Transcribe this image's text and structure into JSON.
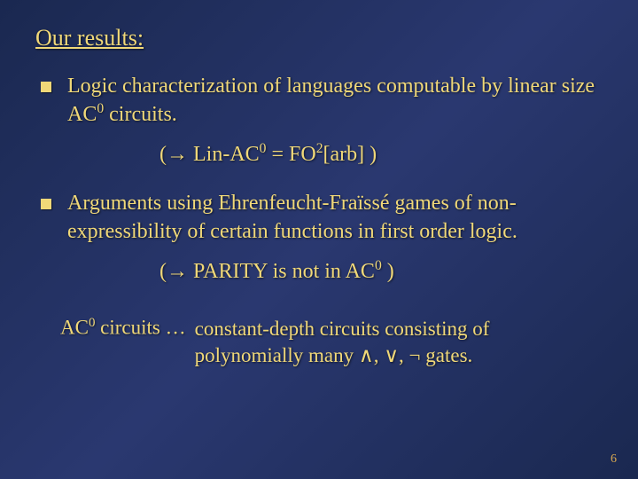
{
  "title": "Our results:",
  "bullets": [
    {
      "text_pre": "Logic characterization of languages computable by linear size AC",
      "sup1": "0",
      "text_post": " circuits."
    },
    {
      "text_pre": "Arguments using Ehrenfeucht-Fraïssé games of non-expressibility of certain functions in first order logic.",
      "sup1": "",
      "text_post": ""
    }
  ],
  "formulas": [
    {
      "open": "(",
      "arrow": "→",
      "mid1": " Lin-AC",
      "sup1": "0",
      "mid2": " = FO",
      "sup2": "2",
      "mid3": "[arb] )"
    },
    {
      "open": "(",
      "arrow": "→",
      "mid1": " PARITY is not in AC",
      "sup1": "0",
      "mid2": " )",
      "sup2": "",
      "mid3": ""
    }
  ],
  "footnote": {
    "left_pre": "AC",
    "left_sup": "0",
    "left_post": " circuits …",
    "right": "constant-depth circuits consisting of polynomially many ∧, ∨, ¬ gates."
  },
  "page_number": "6"
}
